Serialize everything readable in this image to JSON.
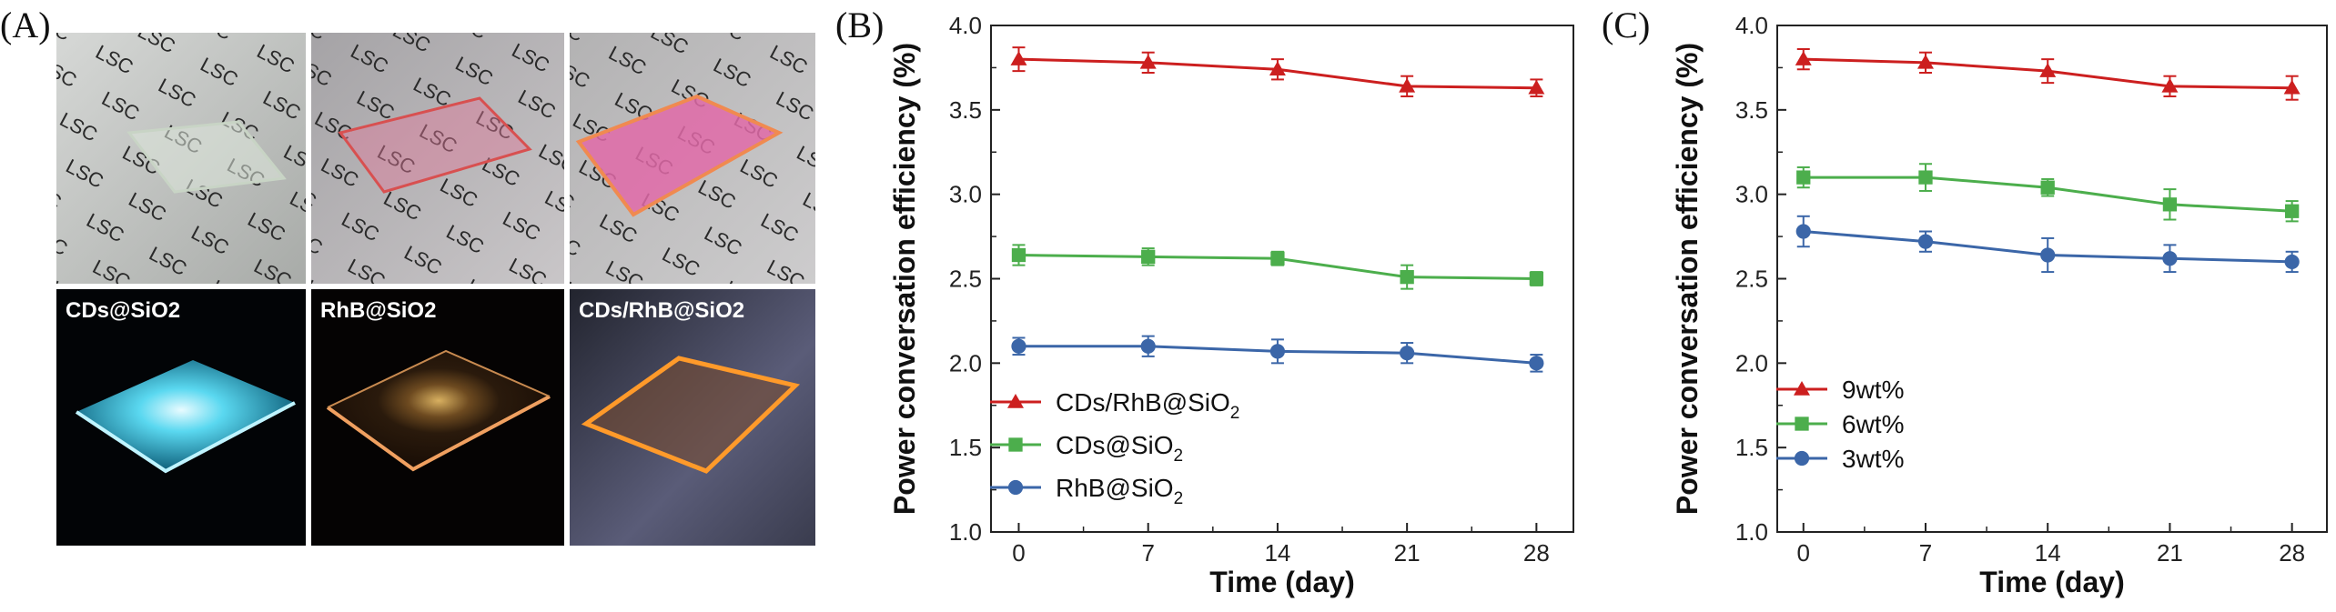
{
  "panel_labels": {
    "a": "(A)",
    "b": "(B)",
    "c": "(C)"
  },
  "photos": {
    "sheet_text": "LSC",
    "labels": [
      "CDs@SiO2",
      "RhB@SiO2",
      "CDs/RhB@SiO2"
    ],
    "colors": {
      "cds_glow": "#5ad8f0",
      "rhb_glow": "#f0a060",
      "combo_glow": "#ff9a2a",
      "rhb_film": "#e07898",
      "combo_film": "#e06aa8"
    }
  },
  "chart_data": [
    {
      "type": "line",
      "panel": "(B)",
      "title": "",
      "xlabel": "Time (day)",
      "ylabel": "Power conversation efficiency (%)",
      "x": [
        0,
        7,
        14,
        21,
        28
      ],
      "xlim": [
        -1.5,
        30
      ],
      "ylim": [
        1.0,
        4.0
      ],
      "xticks": [
        "0",
        "7",
        "14",
        "21",
        "28"
      ],
      "yticks": [
        "1.0",
        "1.5",
        "2.0",
        "2.5",
        "3.0",
        "3.5",
        "4.0"
      ],
      "legend_position": "lower-left",
      "series": [
        {
          "name": "CDs/RhB@SiO2",
          "label_main": "CDs/RhB@SiO",
          "label_sub": "2",
          "marker": "triangle",
          "color": "#cc1f1f",
          "values": [
            3.8,
            3.78,
            3.74,
            3.64,
            3.63
          ],
          "errors": [
            0.07,
            0.06,
            0.06,
            0.06,
            0.05
          ]
        },
        {
          "name": "CDs@SiO2",
          "label_main": "CDs@SiO",
          "label_sub": "2",
          "marker": "square",
          "color": "#4cae4c",
          "values": [
            2.64,
            2.63,
            2.62,
            2.51,
            2.5
          ],
          "errors": [
            0.06,
            0.05,
            0.04,
            0.07,
            0.04
          ]
        },
        {
          "name": "RhB@SiO2",
          "label_main": "RhB@SiO",
          "label_sub": "2",
          "marker": "circle",
          "color": "#3b66a8",
          "values": [
            2.1,
            2.1,
            2.07,
            2.06,
            2.0
          ],
          "errors": [
            0.05,
            0.06,
            0.07,
            0.06,
            0.05
          ]
        }
      ]
    },
    {
      "type": "line",
      "panel": "(C)",
      "title": "",
      "xlabel": "Time (day)",
      "ylabel": "Power conversation efficiency (%)",
      "x": [
        0,
        7,
        14,
        21,
        28
      ],
      "xlim": [
        -1.5,
        30
      ],
      "ylim": [
        1.0,
        4.0
      ],
      "xticks": [
        "0",
        "7",
        "14",
        "21",
        "28"
      ],
      "yticks": [
        "1.0",
        "1.5",
        "2.0",
        "2.5",
        "3.0",
        "3.5",
        "4.0"
      ],
      "legend_position": "lower-left",
      "series": [
        {
          "name": "9wt%",
          "label_main": "9wt%",
          "label_sub": "",
          "marker": "triangle",
          "color": "#cc1f1f",
          "values": [
            3.8,
            3.78,
            3.73,
            3.64,
            3.63
          ],
          "errors": [
            0.06,
            0.06,
            0.07,
            0.06,
            0.07
          ]
        },
        {
          "name": "6wt%",
          "label_main": "6wt%",
          "label_sub": "",
          "marker": "square",
          "color": "#4cae4c",
          "values": [
            3.1,
            3.1,
            3.04,
            2.94,
            2.9
          ],
          "errors": [
            0.06,
            0.08,
            0.05,
            0.09,
            0.06
          ]
        },
        {
          "name": "3wt%",
          "label_main": "3wt%",
          "label_sub": "",
          "marker": "circle",
          "color": "#3b66a8",
          "values": [
            2.78,
            2.72,
            2.64,
            2.62,
            2.6
          ],
          "errors": [
            0.09,
            0.06,
            0.1,
            0.08,
            0.06
          ]
        }
      ]
    }
  ]
}
